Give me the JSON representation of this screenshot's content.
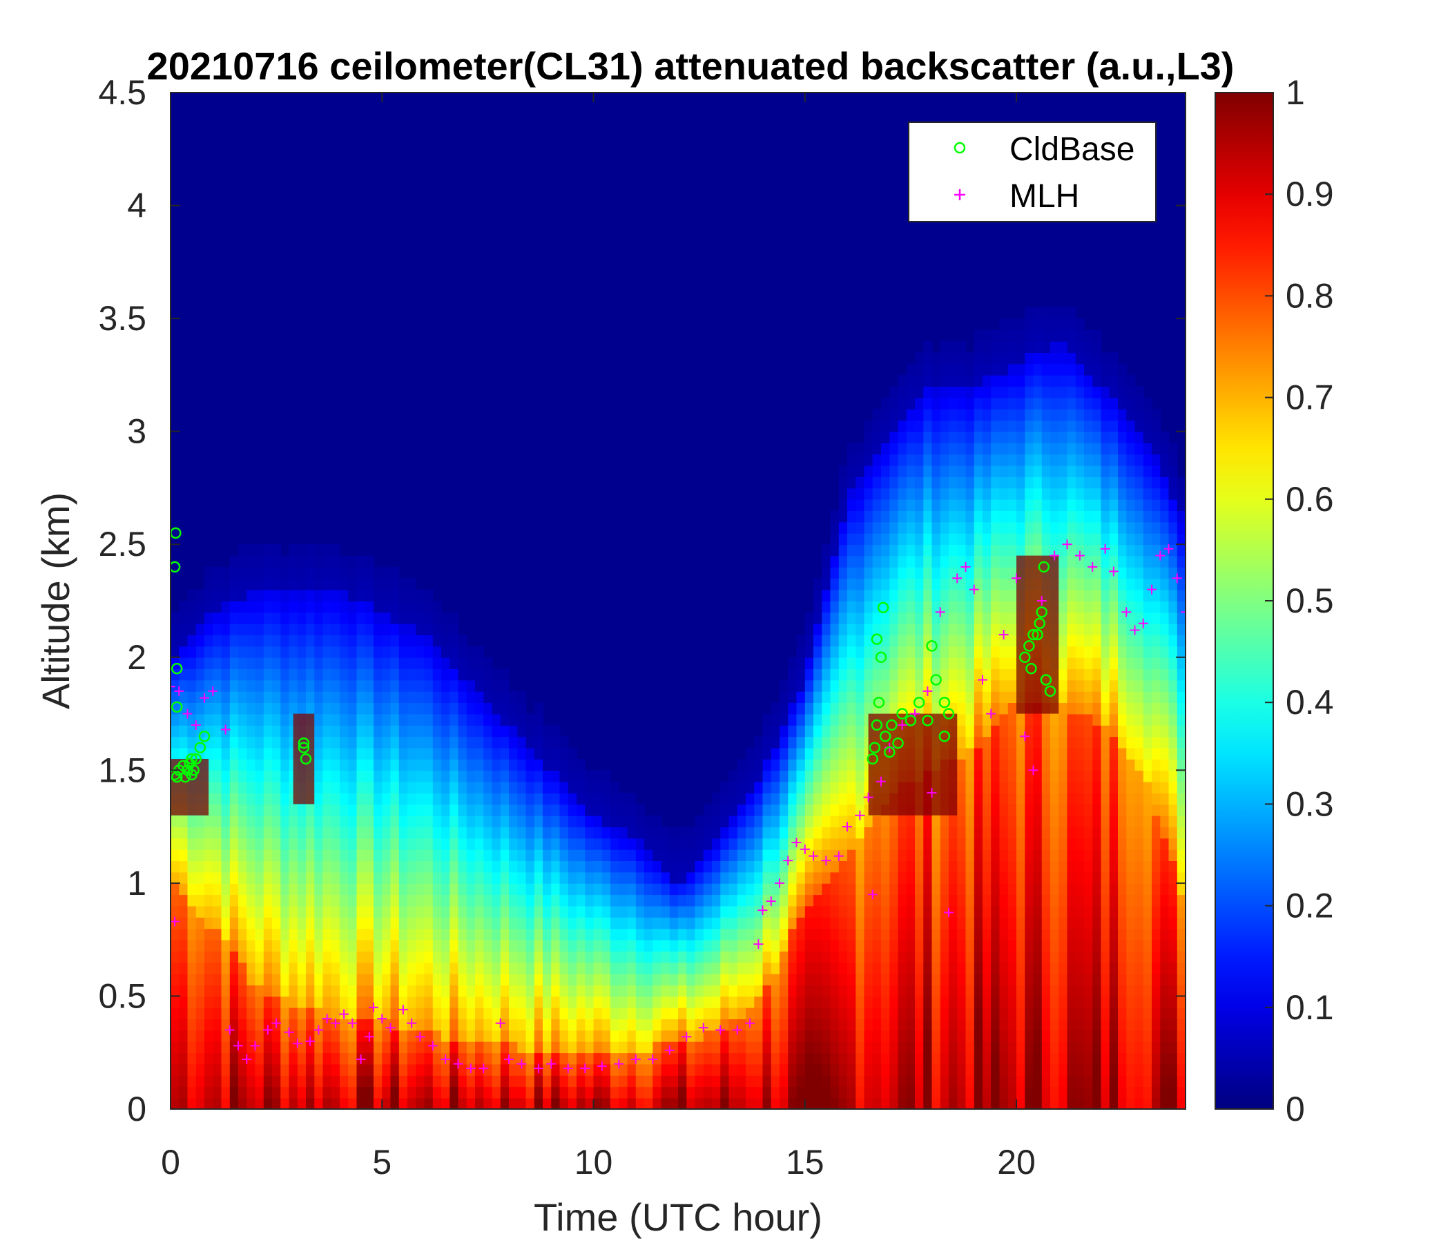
{
  "chart_data": {
    "type": "heatmap",
    "title": "20210716 ceilometer(CL31) attenuated backscatter (a.u.,L3)",
    "xlabel": "Time (UTC hour)",
    "ylabel": "Altitude (km)",
    "xlim": [
      0,
      24
    ],
    "ylim": [
      0,
      4.5
    ],
    "xticks": [
      0,
      5,
      10,
      15,
      20
    ],
    "xtick_labels": [
      "0",
      "5",
      "10",
      "15",
      "20"
    ],
    "yticks": [
      0,
      0.5,
      1,
      1.5,
      2,
      2.5,
      3,
      3.5,
      4,
      4.5
    ],
    "ytick_labels": [
      "0",
      "0.5",
      "1",
      "1.5",
      "2",
      "2.5",
      "3",
      "3.5",
      "4",
      "4.5"
    ],
    "colorbar": {
      "colormap": "jet",
      "range": [
        0,
        1
      ],
      "ticks": [
        0,
        0.1,
        0.2,
        0.3,
        0.4,
        0.5,
        0.6,
        0.7,
        0.8,
        0.9,
        1
      ],
      "tick_labels": [
        "0",
        "0.1",
        "0.2",
        "0.3",
        "0.4",
        "0.5",
        "0.6",
        "0.7",
        "0.8",
        "0.9",
        "1"
      ]
    },
    "legend": {
      "location": "top-right",
      "entries": [
        {
          "label": "CldBase",
          "marker": "circle",
          "color": "#00ff00"
        },
        {
          "label": "MLH",
          "marker": "plus",
          "color": "#ff00ff"
        }
      ]
    },
    "background_profile": {
      "description": "approximate top of aerosol layer (km) and top of high-backscatter region (km) over time",
      "times": [
        0,
        1,
        2,
        3,
        4,
        5,
        6,
        7,
        8,
        9,
        10,
        11,
        12,
        13,
        14,
        15,
        16,
        17,
        18,
        19,
        20,
        21,
        22,
        23,
        24
      ],
      "aerosol_top": [
        2.0,
        2.2,
        2.3,
        2.3,
        2.3,
        2.2,
        2.1,
        1.9,
        1.7,
        1.5,
        1.3,
        1.2,
        1.0,
        1.2,
        1.5,
        1.9,
        2.7,
        3.0,
        3.2,
        3.2,
        3.3,
        3.4,
        3.2,
        3.0,
        2.6
      ],
      "hot_top": [
        1.0,
        0.8,
        0.55,
        0.45,
        0.4,
        0.38,
        0.35,
        0.3,
        0.28,
        0.25,
        0.25,
        0.25,
        0.3,
        0.35,
        0.5,
        0.9,
        1.1,
        1.4,
        1.5,
        1.6,
        1.8,
        1.8,
        1.7,
        1.5,
        0.9
      ]
    },
    "series": [
      {
        "name": "CldBase",
        "points": [
          [
            0.1,
            1.48
          ],
          [
            0.15,
            1.47
          ],
          [
            0.2,
            1.5
          ],
          [
            0.3,
            1.52
          ],
          [
            0.35,
            1.47
          ],
          [
            0.4,
            1.5
          ],
          [
            0.45,
            1.53
          ],
          [
            0.5,
            1.48
          ],
          [
            0.55,
            1.5
          ],
          [
            0.6,
            1.55
          ],
          [
            0.7,
            1.6
          ],
          [
            0.8,
            1.65
          ],
          [
            0.15,
            1.78
          ],
          [
            0.1,
            2.4
          ],
          [
            0.12,
            2.55
          ],
          [
            0.15,
            1.95
          ],
          [
            0.5,
            1.55
          ],
          [
            3.15,
            1.6
          ],
          [
            3.2,
            1.55
          ],
          [
            3.15,
            1.62
          ],
          [
            16.6,
            1.55
          ],
          [
            16.65,
            1.6
          ],
          [
            16.7,
            1.7
          ],
          [
            16.75,
            1.8
          ],
          [
            16.8,
            2.0
          ],
          [
            16.7,
            2.08
          ],
          [
            16.9,
            1.65
          ],
          [
            17.0,
            1.58
          ],
          [
            17.05,
            1.7
          ],
          [
            17.2,
            1.62
          ],
          [
            17.3,
            1.75
          ],
          [
            17.5,
            1.72
          ],
          [
            17.7,
            1.8
          ],
          [
            17.9,
            1.72
          ],
          [
            18.0,
            2.05
          ],
          [
            18.1,
            1.9
          ],
          [
            18.3,
            1.8
          ],
          [
            18.4,
            1.75
          ],
          [
            18.3,
            1.65
          ],
          [
            16.85,
            2.22
          ],
          [
            20.2,
            2.0
          ],
          [
            20.3,
            2.05
          ],
          [
            20.35,
            1.95
          ],
          [
            20.5,
            2.1
          ],
          [
            20.6,
            2.2
          ],
          [
            20.55,
            2.15
          ],
          [
            20.7,
            1.9
          ],
          [
            20.8,
            1.85
          ],
          [
            20.65,
            2.4
          ],
          [
            20.4,
            2.1
          ]
        ]
      },
      {
        "name": "MLH",
        "points": [
          [
            0,
            1.87
          ],
          [
            0.1,
            0.83
          ],
          [
            0.2,
            1.85
          ],
          [
            0.4,
            1.75
          ],
          [
            0.6,
            1.7
          ],
          [
            0.8,
            1.82
          ],
          [
            1.0,
            1.85
          ],
          [
            1.3,
            1.68
          ],
          [
            1.4,
            0.35
          ],
          [
            1.6,
            0.28
          ],
          [
            1.8,
            0.22
          ],
          [
            2.0,
            0.28
          ],
          [
            2.3,
            0.35
          ],
          [
            2.5,
            0.38
          ],
          [
            2.8,
            0.34
          ],
          [
            3.0,
            0.29
          ],
          [
            3.3,
            0.3
          ],
          [
            3.5,
            0.35
          ],
          [
            3.7,
            0.4
          ],
          [
            3.9,
            0.38
          ],
          [
            4.1,
            0.42
          ],
          [
            4.3,
            0.38
          ],
          [
            4.5,
            0.22
          ],
          [
            4.7,
            0.32
          ],
          [
            4.8,
            0.45
          ],
          [
            5.0,
            0.4
          ],
          [
            5.2,
            0.36
          ],
          [
            5.5,
            0.44
          ],
          [
            5.7,
            0.38
          ],
          [
            5.9,
            0.32
          ],
          [
            6.2,
            0.28
          ],
          [
            6.5,
            0.22
          ],
          [
            6.8,
            0.2
          ],
          [
            7.1,
            0.18
          ],
          [
            7.4,
            0.18
          ],
          [
            7.8,
            0.38
          ],
          [
            8.0,
            0.22
          ],
          [
            8.3,
            0.2
          ],
          [
            8.7,
            0.18
          ],
          [
            9.0,
            0.2
          ],
          [
            9.4,
            0.18
          ],
          [
            9.8,
            0.18
          ],
          [
            10.2,
            0.19
          ],
          [
            10.6,
            0.2
          ],
          [
            11.0,
            0.22
          ],
          [
            11.4,
            0.22
          ],
          [
            11.8,
            0.26
          ],
          [
            12.2,
            0.32
          ],
          [
            12.6,
            0.36
          ],
          [
            13.0,
            0.35
          ],
          [
            13.4,
            0.35
          ],
          [
            13.7,
            0.38
          ],
          [
            13.9,
            0.73
          ],
          [
            14.0,
            0.88
          ],
          [
            14.2,
            0.92
          ],
          [
            14.4,
            1.0
          ],
          [
            14.6,
            1.1
          ],
          [
            14.8,
            1.18
          ],
          [
            15.0,
            1.15
          ],
          [
            15.2,
            1.12
          ],
          [
            15.5,
            1.1
          ],
          [
            15.8,
            1.12
          ],
          [
            16.0,
            1.25
          ],
          [
            16.3,
            1.3
          ],
          [
            16.5,
            1.38
          ],
          [
            16.6,
            0.95
          ],
          [
            16.8,
            1.45
          ],
          [
            17.0,
            1.6
          ],
          [
            17.3,
            1.7
          ],
          [
            17.6,
            1.75
          ],
          [
            17.9,
            1.85
          ],
          [
            18.0,
            1.4
          ],
          [
            18.2,
            2.2
          ],
          [
            18.4,
            0.87
          ],
          [
            18.6,
            2.35
          ],
          [
            18.8,
            2.4
          ],
          [
            19.0,
            2.3
          ],
          [
            19.2,
            1.9
          ],
          [
            19.4,
            1.75
          ],
          [
            19.7,
            2.1
          ],
          [
            20.0,
            2.35
          ],
          [
            20.2,
            1.65
          ],
          [
            20.4,
            1.5
          ],
          [
            20.6,
            2.25
          ],
          [
            20.9,
            2.45
          ],
          [
            21.2,
            2.5
          ],
          [
            21.5,
            2.45
          ],
          [
            21.8,
            2.4
          ],
          [
            22.1,
            2.48
          ],
          [
            22.3,
            2.38
          ],
          [
            22.6,
            2.2
          ],
          [
            22.8,
            2.12
          ],
          [
            23.0,
            2.15
          ],
          [
            23.2,
            2.3
          ],
          [
            23.4,
            2.45
          ],
          [
            23.6,
            2.48
          ],
          [
            23.8,
            2.35
          ],
          [
            24.0,
            2.2
          ]
        ]
      }
    ]
  }
}
